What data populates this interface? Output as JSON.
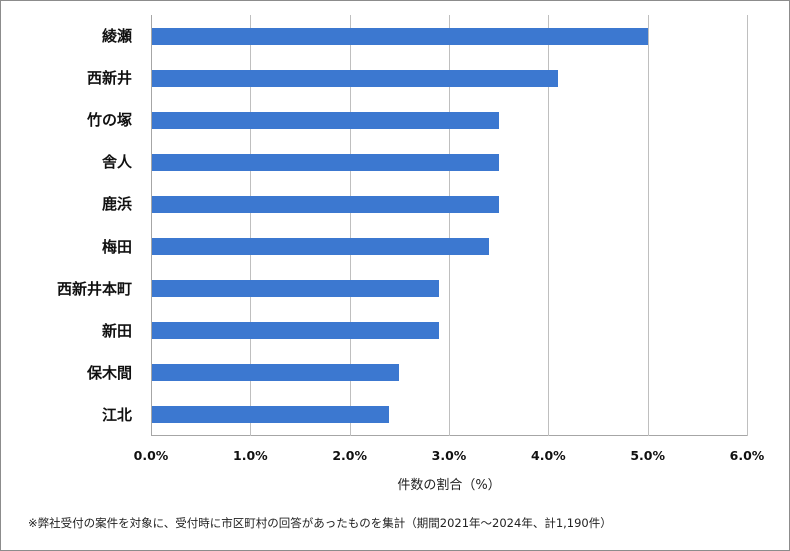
{
  "chart_data": {
    "type": "bar",
    "orientation": "horizontal",
    "categories": [
      "綾瀬",
      "西新井",
      "竹の塚",
      "舎人",
      "鹿浜",
      "梅田",
      "西新井本町",
      "新田",
      "保木間",
      "江北"
    ],
    "values": [
      5.0,
      4.1,
      3.5,
      3.5,
      3.5,
      3.4,
      2.9,
      2.9,
      2.5,
      2.4
    ],
    "unit": "%",
    "title": "",
    "xlabel": "件数の割合（%）",
    "ylabel": "",
    "xlim": [
      0,
      6
    ],
    "x_ticks": [
      "0.0%",
      "1.0%",
      "2.0%",
      "3.0%",
      "4.0%",
      "5.0%",
      "6.0%"
    ],
    "grid": "vertical",
    "legend": "none",
    "bar_color": "#3c78d0",
    "note": "※弊社受付の案件を対象に、受付時に市区町村の回答があったものを集計（期間2021年～2024年、計1,190件）"
  }
}
